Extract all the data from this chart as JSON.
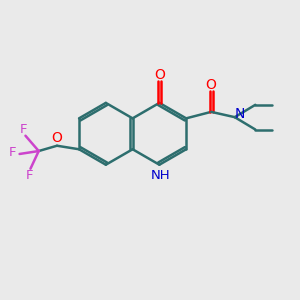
{
  "background_color": "#eaeaea",
  "bond_color": "#2d6e6e",
  "bond_width": 1.8,
  "o_color": "#ff0000",
  "n_color": "#0000cc",
  "f_color": "#cc44cc",
  "figsize": [
    3.0,
    3.0
  ],
  "dpi": 100,
  "xlim": [
    0,
    10
  ],
  "ylim": [
    0,
    10
  ]
}
